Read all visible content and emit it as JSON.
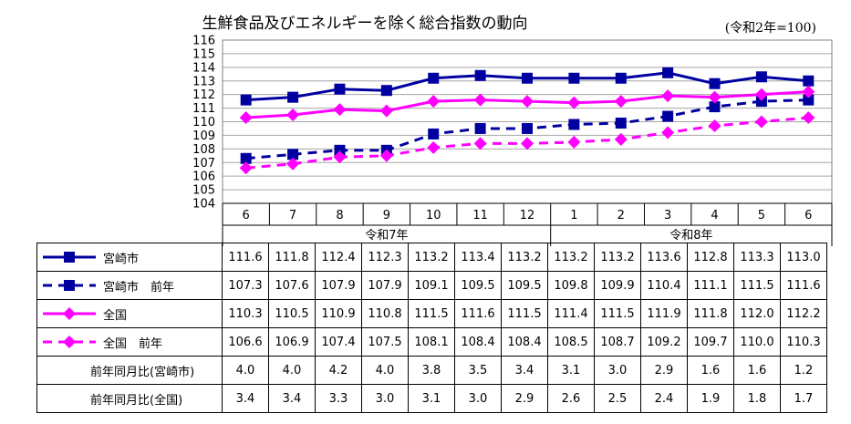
{
  "title": "生鮮食品及びエネルギーを除く総合指数の動向",
  "unit_note": "(令和2年=100)",
  "colors": {
    "miyazaki": "#0000a0",
    "zenkoku": "#ff00ff",
    "grid": "#a6a6a6"
  },
  "chart_data": {
    "type": "line",
    "title": "生鮮食品及びエネルギーを除く総合指数の動向",
    "ylim": [
      104,
      116
    ],
    "yticks": [
      104,
      105,
      106,
      107,
      108,
      109,
      110,
      111,
      112,
      113,
      114,
      115,
      116
    ],
    "categories": [
      "6",
      "7",
      "8",
      "9",
      "10",
      "11",
      "12",
      "1",
      "2",
      "3",
      "4",
      "5",
      "6"
    ],
    "year_groups": [
      {
        "label": "令和7年",
        "count": 7
      },
      {
        "label": "令和8年",
        "count": 6
      }
    ],
    "grid": true,
    "series": [
      {
        "name": "宮崎市",
        "color": "#0000a0",
        "dashed": false,
        "values": [
          111.6,
          111.8,
          112.4,
          112.3,
          113.2,
          113.4,
          113.2,
          113.2,
          113.2,
          113.6,
          112.8,
          113.3,
          113.0
        ]
      },
      {
        "name": "宮崎市　前年",
        "color": "#0000a0",
        "dashed": true,
        "values": [
          107.3,
          107.6,
          107.9,
          107.9,
          109.1,
          109.5,
          109.5,
          109.8,
          109.9,
          110.4,
          111.1,
          111.5,
          111.6
        ]
      },
      {
        "name": "全国",
        "color": "#ff00ff",
        "dashed": false,
        "values": [
          110.3,
          110.5,
          110.9,
          110.8,
          111.5,
          111.6,
          111.5,
          111.4,
          111.5,
          111.9,
          111.8,
          112.0,
          112.2
        ]
      },
      {
        "name": "全国　前年",
        "color": "#ff00ff",
        "dashed": true,
        "values": [
          106.6,
          106.9,
          107.4,
          107.5,
          108.1,
          108.4,
          108.4,
          108.5,
          108.7,
          109.2,
          109.7,
          110.0,
          110.3
        ]
      }
    ],
    "table_series_text": [
      [
        "111.6",
        "111.8",
        "112.4",
        "112.3",
        "113.2",
        "113.4",
        "113.2",
        "113.2",
        "113.2",
        "113.6",
        "112.8",
        "113.3",
        "113.0"
      ],
      [
        "107.3",
        "107.6",
        "107.9",
        "107.9",
        "109.1",
        "109.5",
        "109.5",
        "109.8",
        "109.9",
        "110.4",
        "111.1",
        "111.5",
        "111.6"
      ],
      [
        "110.3",
        "110.5",
        "110.9",
        "110.8",
        "111.5",
        "111.6",
        "111.5",
        "111.4",
        "111.5",
        "111.9",
        "111.8",
        "112.0",
        "112.2"
      ],
      [
        "106.6",
        "106.9",
        "107.4",
        "107.5",
        "108.1",
        "108.4",
        "108.4",
        "108.5",
        "108.7",
        "109.2",
        "109.7",
        "110.0",
        "110.3"
      ]
    ],
    "stat_rows": [
      {
        "label": "前年同月比(宮崎市)",
        "values": [
          "4.0",
          "4.0",
          "4.2",
          "4.0",
          "3.8",
          "3.5",
          "3.4",
          "3.1",
          "3.0",
          "2.9",
          "1.6",
          "1.6",
          "1.2"
        ]
      },
      {
        "label": "前年同月比(全国)",
        "values": [
          "3.4",
          "3.4",
          "3.3",
          "3.0",
          "3.1",
          "3.0",
          "2.9",
          "2.6",
          "2.5",
          "2.4",
          "1.9",
          "1.8",
          "1.7"
        ]
      }
    ]
  }
}
